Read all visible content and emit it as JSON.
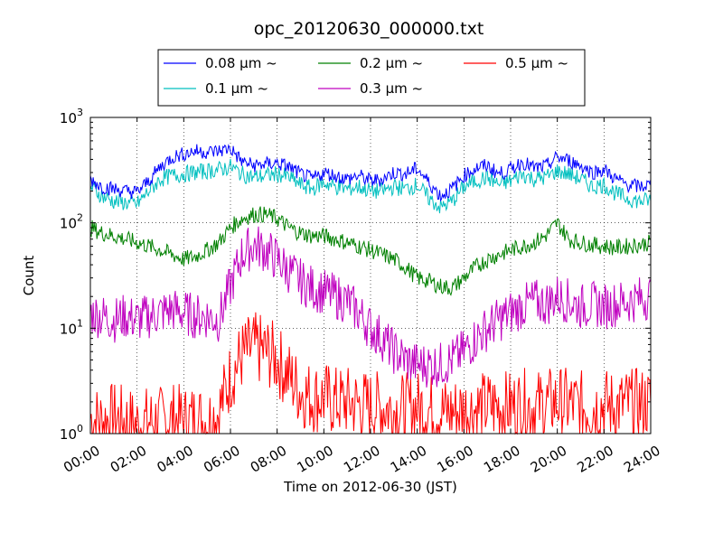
{
  "chart_data": {
    "type": "line",
    "title": "opc_20120630_000000.txt",
    "xlabel": "Time on 2012-06-30 (JST)",
    "ylabel": "Count",
    "x_unit": "hour",
    "xlim": [
      0,
      24
    ],
    "ylim": [
      1,
      1000
    ],
    "yscale": "log",
    "grid": true,
    "legend_position": "top-center",
    "x_ticks": [
      {
        "value": 0,
        "label": "00:00"
      },
      {
        "value": 2,
        "label": "02:00"
      },
      {
        "value": 4,
        "label": "04:00"
      },
      {
        "value": 6,
        "label": "06:00"
      },
      {
        "value": 8,
        "label": "08:00"
      },
      {
        "value": 10,
        "label": "10:00"
      },
      {
        "value": 12,
        "label": "12:00"
      },
      {
        "value": 14,
        "label": "14:00"
      },
      {
        "value": 16,
        "label": "16:00"
      },
      {
        "value": 18,
        "label": "18:00"
      },
      {
        "value": 20,
        "label": "20:00"
      },
      {
        "value": 22,
        "label": "22:00"
      },
      {
        "value": 24,
        "label": "24:00"
      }
    ],
    "y_ticks": [
      {
        "value": 1,
        "base": "10",
        "exp": "0"
      },
      {
        "value": 10,
        "base": "10",
        "exp": "1"
      },
      {
        "value": 100,
        "base": "10",
        "exp": "2"
      },
      {
        "value": 1000,
        "base": "10",
        "exp": "3"
      }
    ],
    "series": [
      {
        "name": "0.08 μm ~",
        "color": "#0000ff",
        "x": [
          0,
          0.5,
          1,
          1.5,
          2,
          2.5,
          3,
          3.5,
          4,
          4.5,
          5,
          5.5,
          6,
          6.5,
          7,
          7.5,
          8,
          8.5,
          9,
          9.5,
          10,
          10.5,
          11,
          11.5,
          12,
          12.5,
          13,
          13.5,
          14,
          14.5,
          15,
          15.5,
          16,
          16.5,
          17,
          17.5,
          18,
          18.5,
          19,
          19.5,
          20,
          20.5,
          21,
          21.5,
          22,
          22.5,
          23,
          23.5,
          24
        ],
        "values": [
          260,
          220,
          210,
          200,
          195,
          250,
          340,
          420,
          450,
          480,
          470,
          480,
          510,
          380,
          350,
          360,
          370,
          340,
          290,
          260,
          300,
          280,
          260,
          280,
          250,
          260,
          300,
          290,
          330,
          240,
          180,
          210,
          280,
          330,
          350,
          290,
          320,
          380,
          330,
          340,
          420,
          390,
          350,
          300,
          320,
          260,
          230,
          220,
          230
        ]
      },
      {
        "name": "0.1 μm ~",
        "color": "#00bfbf",
        "x": [
          0,
          0.5,
          1,
          1.5,
          2,
          2.5,
          3,
          3.5,
          4,
          4.5,
          5,
          5.5,
          6,
          6.5,
          7,
          7.5,
          8,
          8.5,
          9,
          9.5,
          10,
          10.5,
          11,
          11.5,
          12,
          12.5,
          13,
          13.5,
          14,
          14.5,
          15,
          15.5,
          16,
          16.5,
          17,
          17.5,
          18,
          18.5,
          19,
          19.5,
          20,
          20.5,
          21,
          21.5,
          22,
          22.5,
          23,
          23.5,
          24
        ],
        "values": [
          220,
          180,
          160,
          155,
          150,
          200,
          260,
          280,
          290,
          300,
          310,
          320,
          340,
          290,
          270,
          280,
          290,
          270,
          230,
          210,
          240,
          220,
          210,
          220,
          200,
          200,
          220,
          210,
          230,
          170,
          140,
          160,
          220,
          250,
          270,
          230,
          250,
          290,
          260,
          270,
          310,
          290,
          260,
          220,
          230,
          190,
          170,
          160,
          165
        ]
      },
      {
        "name": "0.2 μm ~",
        "color": "#008000",
        "x": [
          0,
          0.5,
          1,
          1.5,
          2,
          2.5,
          3,
          3.5,
          4,
          4.5,
          5,
          5.5,
          6,
          6.5,
          7,
          7.5,
          8,
          8.5,
          9,
          9.5,
          10,
          10.5,
          11,
          11.5,
          12,
          12.5,
          13,
          13.5,
          14,
          14.5,
          15,
          15.5,
          16,
          16.5,
          17,
          17.5,
          18,
          18.5,
          19,
          19.5,
          20,
          20.5,
          21,
          21.5,
          22,
          22.5,
          23,
          23.5,
          24
        ],
        "values": [
          90,
          80,
          75,
          70,
          65,
          60,
          55,
          50,
          45,
          48,
          55,
          65,
          90,
          110,
          120,
          120,
          110,
          90,
          80,
          75,
          75,
          70,
          65,
          60,
          55,
          50,
          45,
          38,
          30,
          28,
          25,
          24,
          30,
          38,
          45,
          50,
          55,
          60,
          65,
          75,
          100,
          70,
          65,
          62,
          60,
          58,
          60,
          62,
          65
        ]
      },
      {
        "name": "0.3 μm ~",
        "color": "#bf00bf",
        "x": [
          0,
          0.5,
          1,
          1.5,
          2,
          2.5,
          3,
          3.5,
          4,
          4.5,
          5,
          5.5,
          6,
          6.5,
          7,
          7.5,
          8,
          8.5,
          9,
          9.5,
          10,
          10.5,
          11,
          11.5,
          12,
          12.5,
          13,
          13.5,
          14,
          14.5,
          15,
          15.5,
          16,
          16.5,
          17,
          17.5,
          18,
          18.5,
          19,
          19.5,
          20,
          20.5,
          21,
          21.5,
          22,
          22.5,
          23,
          23.5,
          24
        ],
        "values": [
          14,
          13,
          12,
          13,
          12,
          13,
          14,
          15,
          14,
          13,
          13,
          12,
          25,
          50,
          62,
          55,
          45,
          35,
          28,
          24,
          22,
          20,
          18,
          14,
          10,
          8,
          6,
          5,
          4.5,
          4.5,
          4.5,
          5,
          6,
          8,
          10,
          12,
          14,
          16,
          18,
          17,
          20,
          18,
          16,
          17,
          16,
          17,
          18,
          19,
          20
        ]
      },
      {
        "name": "0.5 μm ~",
        "color": "#ff0000",
        "x": [
          0,
          0.5,
          1,
          1.5,
          2,
          2.5,
          3,
          3.5,
          4,
          4.5,
          5,
          5.5,
          6,
          6.5,
          7,
          7.5,
          8,
          8.5,
          9,
          9.5,
          10,
          10.5,
          11,
          11.5,
          12,
          12.5,
          13,
          13.5,
          14,
          14.5,
          15,
          15.5,
          16,
          16.5,
          17,
          17.5,
          18,
          18.5,
          19,
          19.5,
          20,
          20.5,
          21,
          21.5,
          22,
          22.5,
          23,
          23.5,
          24
        ],
        "values": [
          1.4,
          1.3,
          1.4,
          1.3,
          1.2,
          1.3,
          1.3,
          1.4,
          1.3,
          1.4,
          1.3,
          1.6,
          3.5,
          5.5,
          6.5,
          6,
          5,
          3.5,
          2.5,
          2.2,
          2.2,
          2,
          2,
          1.9,
          1.8,
          1.8,
          1.7,
          1.7,
          1.8,
          1.7,
          1.6,
          1.6,
          1.7,
          1.7,
          1.8,
          1.8,
          1.8,
          1.9,
          1.8,
          1.9,
          2,
          1.9,
          1.8,
          1.8,
          1.9,
          1.8,
          1.9,
          1.9,
          2
        ]
      }
    ]
  }
}
